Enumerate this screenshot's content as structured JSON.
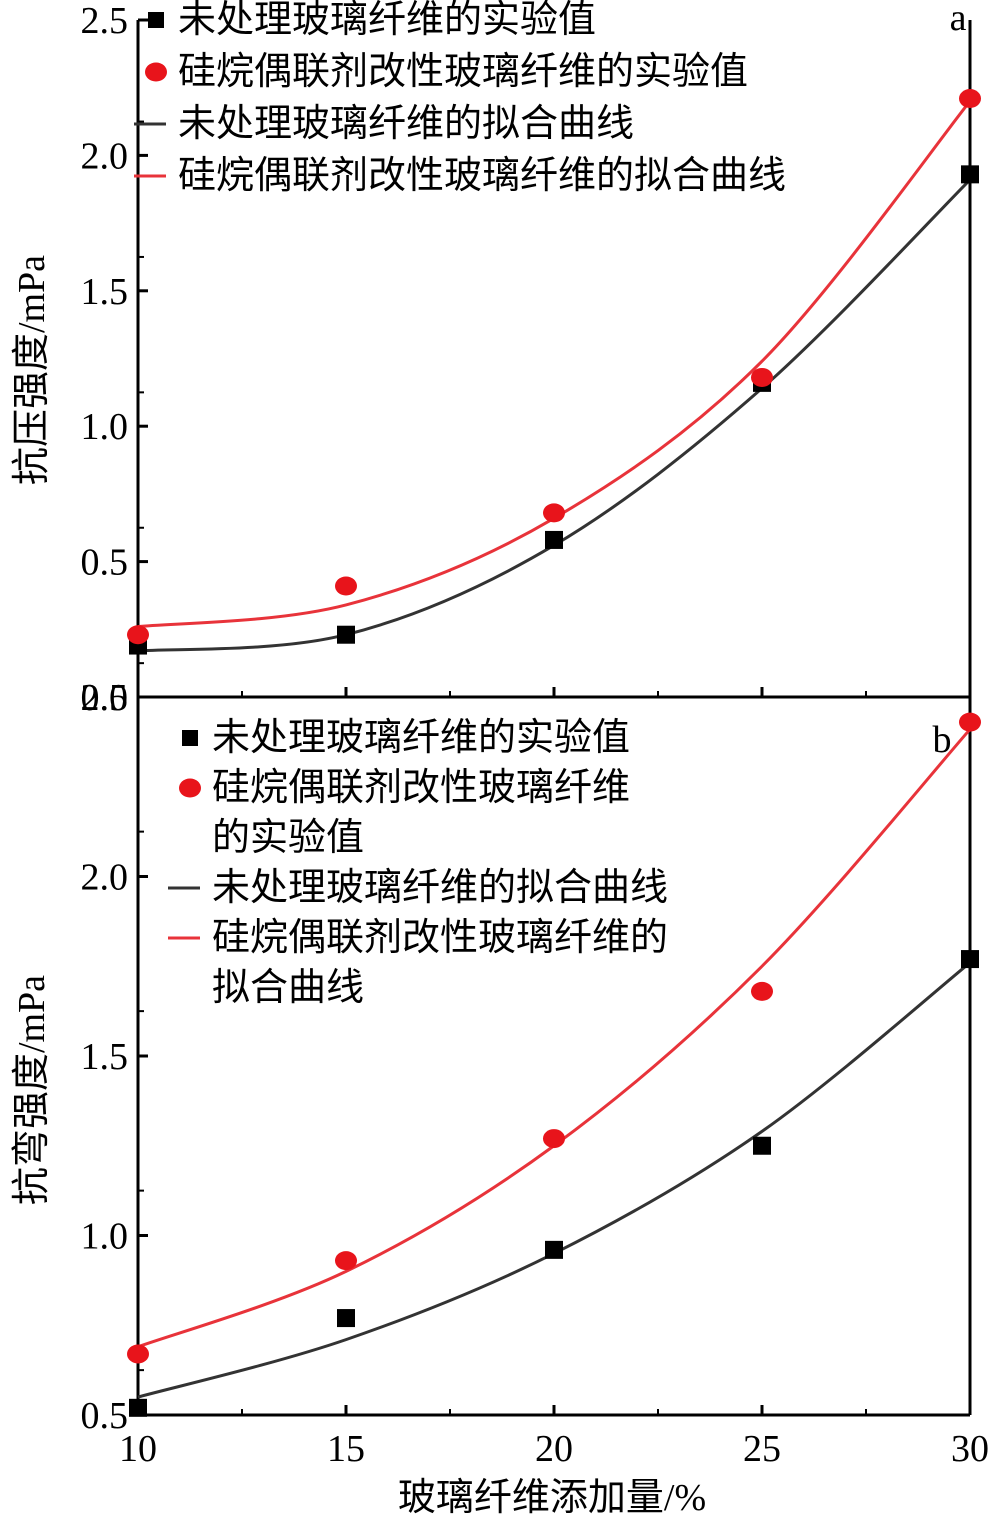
{
  "colors": {
    "untreated": "#000000",
    "modified": "#e8141b",
    "untreated_line": "#333333",
    "modified_line": "#e8333a"
  },
  "chart_data": [
    {
      "type": "scatter",
      "panel_label": "a",
      "xlabel": "",
      "ylabel": "抗压强度/mPa",
      "xlim": [
        10,
        30
      ],
      "ylim": [
        0,
        2.5
      ],
      "yticks": [
        "0.0",
        "0.5",
        "1.0",
        "1.5",
        "2.0",
        "2.5"
      ],
      "x": [
        10,
        15,
        20,
        25,
        30
      ],
      "series": [
        {
          "name": "未处理玻璃纤维的实验值",
          "kind": "points",
          "marker": "square",
          "color": "#000000",
          "values": [
            0.19,
            0.23,
            0.58,
            1.16,
            1.93
          ]
        },
        {
          "name": "硅烷偶联剂改性玻璃纤维的实验值",
          "kind": "points",
          "marker": "circle",
          "color": "#e8141b",
          "values": [
            0.23,
            0.41,
            0.68,
            1.18,
            2.21
          ]
        },
        {
          "name": "未处理玻璃纤维的拟合曲线",
          "kind": "fit",
          "color": "#333333",
          "values": [
            0.17,
            0.23,
            0.56,
            1.14,
            1.91
          ]
        },
        {
          "name": "硅烷偶联剂改性玻璃纤维的拟合曲线",
          "kind": "fit",
          "color": "#e8333a",
          "values": [
            0.26,
            0.34,
            0.66,
            1.24,
            2.2
          ]
        }
      ],
      "legend": [
        {
          "symbol": "square",
          "lines": [
            "未处理玻璃纤维的实验值"
          ]
        },
        {
          "symbol": "circle",
          "lines": [
            "硅烷偶联剂改性玻璃纤维的实验值"
          ]
        },
        {
          "symbol": "line-black",
          "lines": [
            "未处理玻璃纤维的拟合曲线"
          ]
        },
        {
          "symbol": "line-red",
          "lines": [
            "硅烷偶联剂改性玻璃纤维的拟合曲线"
          ]
        }
      ],
      "legend_position": "top-left"
    },
    {
      "type": "scatter",
      "panel_label": "b",
      "xlabel": "玻璃纤维添加量/%",
      "ylabel": "抗弯强度/mPa",
      "xlim": [
        10,
        30
      ],
      "ylim": [
        0.5,
        2.5
      ],
      "xticks": [
        "10",
        "15",
        "20",
        "25",
        "30"
      ],
      "yticks": [
        "0.5",
        "1.0",
        "1.5",
        "2.0",
        "2.5"
      ],
      "x": [
        10,
        15,
        20,
        25,
        30
      ],
      "series": [
        {
          "name": "未处理玻璃纤维的实验值",
          "kind": "points",
          "marker": "square",
          "color": "#000000",
          "values": [
            0.52,
            0.77,
            0.96,
            1.25,
            1.77
          ]
        },
        {
          "name": "硅烷偶联剂改性玻璃纤维的实验值",
          "kind": "points",
          "marker": "circle",
          "color": "#e8141b",
          "values": [
            0.67,
            0.93,
            1.27,
            1.68,
            2.43
          ]
        },
        {
          "name": "未处理玻璃纤维的拟合曲线",
          "kind": "fit",
          "color": "#333333",
          "values": [
            0.55,
            0.71,
            0.95,
            1.29,
            1.76
          ]
        },
        {
          "name": "硅烷偶联剂改性玻璃纤维的拟合曲线",
          "kind": "fit",
          "color": "#e8333a",
          "values": [
            0.69,
            0.9,
            1.25,
            1.75,
            2.41
          ]
        }
      ],
      "legend": [
        {
          "symbol": "square",
          "lines": [
            "未处理玻璃纤维的实验值"
          ]
        },
        {
          "symbol": "circle",
          "lines": [
            "硅烷偶联剂改性玻璃纤维",
            "的实验值"
          ]
        },
        {
          "symbol": "line-black",
          "lines": [
            "未处理玻璃纤维的拟合曲线"
          ]
        },
        {
          "symbol": "line-red",
          "lines": [
            "硅烷偶联剂改性玻璃纤维的",
            "拟合曲线"
          ]
        }
      ],
      "legend_position": "top-left"
    }
  ]
}
